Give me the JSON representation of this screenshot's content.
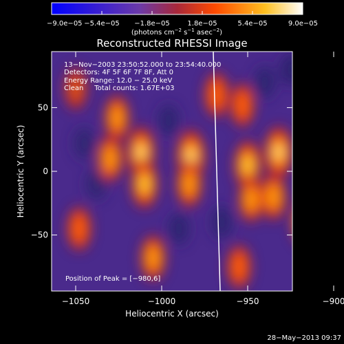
{
  "chart_data": {
    "type": "heatmap",
    "title": "Reconstructed RHESSI Image",
    "xlabel": "Heliocentric X (arcsec)",
    "ylabel": "Heliocentric Y (arcsec)",
    "xlim": [
      -1064,
      -924
    ],
    "ylim": [
      -94,
      94
    ],
    "x_ticks": [
      -1050,
      -1000,
      -950,
      -900
    ],
    "x_tick_labels": [
      "−1050",
      "−1000",
      "−950",
      "−900"
    ],
    "y_ticks": [
      50,
      0,
      -50
    ],
    "y_tick_labels": [
      "50",
      "0",
      "−50"
    ],
    "colorbar": {
      "min": -9e-05,
      "max": 9e-05,
      "tick_labels": [
        "−9.0e−05",
        "−5.4e−05",
        "−1.8e−05",
        "1.8e−05",
        "5.4e−05",
        "9.0e−05"
      ],
      "ticks": [
        -9e-05,
        -5.4e-05,
        -1.8e-05,
        1.8e-05,
        5.4e-05,
        9e-05
      ],
      "units_prefix": "(photons cm",
      "units_exp1": "−2",
      "units_mid": " s",
      "units_exp2": "−1",
      "units_mid2": " asec",
      "units_exp3": "−2",
      "units_suffix": ")",
      "colors": [
        "#0000ff",
        "#5a1fb0",
        "#6b3aa8",
        "#c0281e",
        "#ff7a00",
        "#ffdd33",
        "#ffffff"
      ]
    },
    "annotations": [
      "13−Nov−2003 23:50:52.000 to 23:54:40.000",
      "Detectors: 4F 5F 6F 7F 8F, Att 0",
      "Energy Range: 12.0 − 25.0 keV",
      "Clean     Total counts: 1.67E+03"
    ],
    "peak_label": "Position of Peak = [−980,6]",
    "timestamp": "28−May−2013 09:37",
    "limb_line": [
      [
        -970,
        94
      ],
      [
        -966,
        -94
      ]
    ],
    "bright_blobs": [
      {
        "x": -1026,
        "y": 42,
        "amp": 0.55
      },
      {
        "x": -1030,
        "y": 10,
        "amp": 0.6
      },
      {
        "x": -1012,
        "y": 15,
        "amp": 0.85
      },
      {
        "x": -1010,
        "y": -10,
        "amp": 0.7
      },
      {
        "x": -983,
        "y": 12,
        "amp": 0.95
      },
      {
        "x": -984,
        "y": -10,
        "amp": 0.6
      },
      {
        "x": -968,
        "y": 60,
        "amp": 0.5
      },
      {
        "x": -950,
        "y": 5,
        "amp": 0.75
      },
      {
        "x": -948,
        "y": -22,
        "amp": 0.55
      },
      {
        "x": -932,
        "y": 15,
        "amp": 0.9
      },
      {
        "x": -935,
        "y": -20,
        "amp": 0.6
      },
      {
        "x": -953,
        "y": 52,
        "amp": 0.45
      },
      {
        "x": -1005,
        "y": -68,
        "amp": 0.55
      },
      {
        "x": -955,
        "y": -75,
        "amp": 0.45
      },
      {
        "x": -1048,
        "y": -45,
        "amp": 0.45
      },
      {
        "x": -1050,
        "y": 65,
        "amp": 0.35
      },
      {
        "x": -917,
        "y": -40,
        "amp": 0.6
      }
    ],
    "dark_blobs": [
      {
        "x": -996,
        "y": 40,
        "amp": 0.4
      },
      {
        "x": -1045,
        "y": 22,
        "amp": 0.35
      },
      {
        "x": -990,
        "y": -45,
        "amp": 0.4
      },
      {
        "x": -940,
        "y": 70,
        "amp": 0.4
      },
      {
        "x": -925,
        "y": 80,
        "amp": 0.5
      },
      {
        "x": -1038,
        "y": -10,
        "amp": 0.35
      },
      {
        "x": -965,
        "y": -40,
        "amp": 0.4
      },
      {
        "x": -905,
        "y": 60,
        "amp": 0.4
      }
    ]
  }
}
